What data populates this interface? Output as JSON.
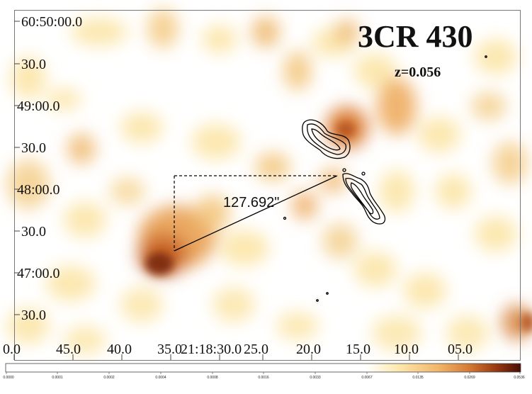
{
  "image": {
    "title": "3CR 430",
    "redshift": "z=0.056",
    "measurement_label": "127.692\"",
    "dec_ticks": [
      "60:50:00.0",
      "30.0",
      "49:00.0",
      "30.0",
      "48:00.0",
      "30.0",
      "47:00.0",
      "30.0"
    ],
    "ra_ticks": [
      "0.0",
      "45.0",
      "40.0",
      "35.0",
      "21:18:30.0",
      "25.0",
      "20.0",
      "15.0",
      "10.0",
      "05.0"
    ],
    "colorbar_ticks": [
      "0.0000",
      "0.0001",
      "0.0002",
      "0.0004",
      "0.0008",
      "0.0016",
      "0.0033",
      "0.0067",
      "0.0135",
      "0.0269",
      "0.0536"
    ],
    "colors": {
      "background": "#ffffff",
      "low": "#fde8a6",
      "mid": "#e79a48",
      "high": "#b5531c",
      "peak": "#5a1205",
      "contour": "#000000"
    }
  }
}
